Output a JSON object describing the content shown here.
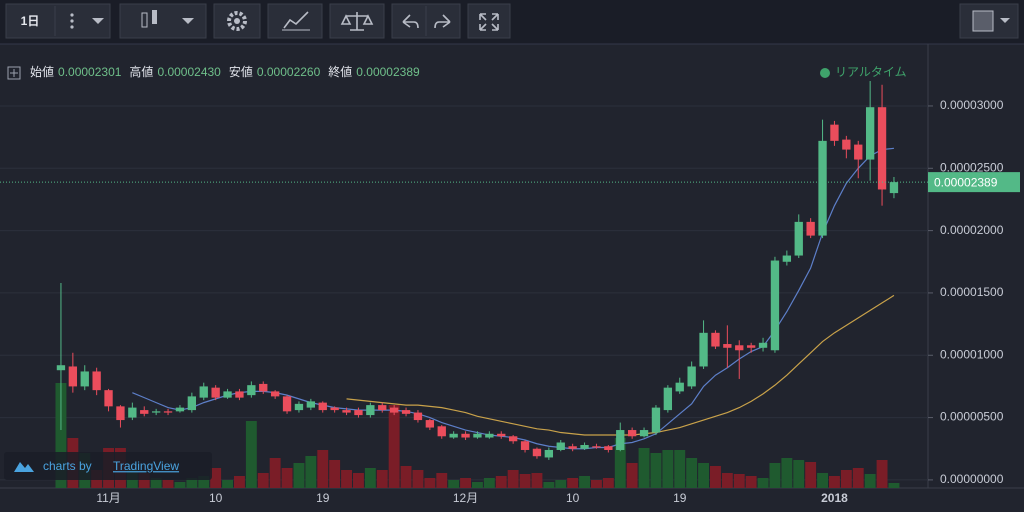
{
  "toolbar": {
    "interval": "1日"
  },
  "legend": {
    "items": [
      {
        "label": "始値",
        "value": "0.00002301"
      },
      {
        "label": "高値",
        "value": "0.00002430"
      },
      {
        "label": "安値",
        "value": "0.00002260"
      },
      {
        "label": "終値",
        "value": "0.00002389"
      }
    ]
  },
  "status": "リアルタイム",
  "branding": {
    "prefix": "charts by",
    "name": "TradingView"
  },
  "chart_data": {
    "type": "candlestick",
    "categories": [
      null,
      null,
      null,
      null,
      "11月",
      null,
      null,
      null,
      null,
      null,
      null,
      null,
      null,
      "10",
      null,
      null,
      null,
      null,
      null,
      null,
      null,
      null,
      "19",
      null,
      null,
      null,
      null,
      null,
      null,
      null,
      null,
      null,
      null,
      null,
      "12月",
      null,
      null,
      null,
      null,
      null,
      null,
      null,
      null,
      "10",
      null,
      null,
      null,
      null,
      null,
      null,
      null,
      null,
      "19",
      null,
      null,
      null,
      null,
      null,
      null,
      null,
      null,
      null,
      null,
      null,
      null,
      "2018",
      null,
      null,
      null,
      null,
      null
    ],
    "open": [
      8.8e-06,
      9.1e-06,
      7.5e-06,
      8.7e-06,
      7.2e-06,
      5.9e-06,
      5e-06,
      5.6e-06,
      5.4e-06,
      5.5e-06,
      5.5e-06,
      5.6e-06,
      6.6e-06,
      7.4e-06,
      6.6e-06,
      7.1e-06,
      6.8e-06,
      7.7e-06,
      7.1e-06,
      6.7e-06,
      5.6e-06,
      5.8e-06,
      6.2e-06,
      5.8e-06,
      5.6e-06,
      5.6e-06,
      5.2e-06,
      6e-06,
      5.8e-06,
      5.6e-06,
      5.4e-06,
      4.8e-06,
      4.3e-06,
      3.4e-06,
      3.7e-06,
      3.4e-06,
      3.4e-06,
      3.7e-06,
      3.5e-06,
      3.1e-06,
      2.5e-06,
      1.8e-06,
      2.4e-06,
      2.7e-06,
      2.5e-06,
      2.7e-06,
      2.7e-06,
      2.4e-06,
      4e-06,
      3.5e-06,
      3.8e-06,
      5.6e-06,
      7.1e-06,
      7.5e-06,
      9.1e-06,
      1.18e-05,
      1.09e-05,
      1.08e-05,
      1.08e-05,
      1.06e-05,
      1.04e-05,
      1.75e-05,
      1.8e-05,
      2.07e-05,
      1.96e-05,
      2.85e-05,
      2.73e-05,
      2.69e-05,
      2.57e-05,
      2.99e-05,
      2.301e-05
    ],
    "high": [
      1.58e-05,
      1.02e-05,
      9.2e-06,
      9e-06,
      7.3e-06,
      6e-06,
      6.2e-06,
      5.9e-06,
      5.7e-06,
      5.7e-06,
      6e-06,
      7e-06,
      7.8e-06,
      7.6e-06,
      7.3e-06,
      7.3e-06,
      7.9e-06,
      7.9e-06,
      7.2e-06,
      6.8e-06,
      6.3e-06,
      6.5e-06,
      6.3e-06,
      5.9e-06,
      5.8e-06,
      5.8e-06,
      6.2e-06,
      6.2e-06,
      6e-06,
      5.8e-06,
      5.6e-06,
      4.9e-06,
      4.4e-06,
      3.9e-06,
      3.9e-06,
      3.9e-06,
      3.9e-06,
      3.9e-06,
      3.6e-06,
      3.2e-06,
      2.6e-06,
      2.6e-06,
      3.2e-06,
      2.9e-06,
      3e-06,
      2.9e-06,
      2.8e-06,
      4.6e-06,
      4.2e-06,
      4.2e-06,
      6e-06,
      7.6e-06,
      8.2e-06,
      9.5e-06,
      1.28e-05,
      1.2e-05,
      1.24e-05,
      1.12e-05,
      1.1e-05,
      1.14e-05,
      1.79e-05,
      1.84e-05,
      2.13e-05,
      2.1e-05,
      2.89e-05,
      2.88e-05,
      2.76e-05,
      2.72e-05,
      3.2e-05,
      3.17e-05,
      2.43e-05
    ],
    "low": [
      4e-06,
      7e-06,
      7.2e-06,
      6.8e-06,
      5.5e-06,
      4.2e-06,
      4.8e-06,
      5.1e-06,
      5.2e-06,
      5.2e-06,
      5.4e-06,
      5.4e-06,
      6.4e-06,
      6.4e-06,
      6.5e-06,
      6.4e-06,
      6.6e-06,
      6.9e-06,
      6.5e-06,
      5.3e-06,
      5.4e-06,
      5.6e-06,
      5.4e-06,
      5.4e-06,
      5.2e-06,
      5e-06,
      5e-06,
      5.4e-06,
      5.2e-06,
      5.1e-06,
      4.6e-06,
      4e-06,
      3.3e-06,
      3.3e-06,
      3.2e-06,
      3.3e-06,
      3.3e-06,
      3.3e-06,
      2.9e-06,
      2.2e-06,
      1.7e-06,
      1.6e-06,
      2.3e-06,
      2.3e-06,
      2.4e-06,
      2.5e-06,
      2.2e-06,
      2.3e-06,
      3.3e-06,
      3.4e-06,
      3.6e-06,
      5.4e-06,
      6.9e-06,
      7.3e-06,
      8.9e-06,
      1.05e-05,
      9e-06,
      8.1e-06,
      1.02e-05,
      1.03e-05,
      1.02e-05,
      1.72e-05,
      1.78e-05,
      1.94e-05,
      1.94e-05,
      2.68e-05,
      2.58e-05,
      2.42e-05,
      2.4e-05,
      2.2e-05,
      2.26e-05
    ],
    "close": [
      9.2e-06,
      7.5e-06,
      8.7e-06,
      7.2e-06,
      5.9e-06,
      4.8e-06,
      5.8e-06,
      5.3e-06,
      5.5e-06,
      5.4e-06,
      5.8e-06,
      6.7e-06,
      7.5e-06,
      6.6e-06,
      7.1e-06,
      6.6e-06,
      7.6e-06,
      7.1e-06,
      6.7e-06,
      5.5e-06,
      6.1e-06,
      6.3e-06,
      5.6e-06,
      5.6e-06,
      5.4e-06,
      5.2e-06,
      6e-06,
      5.6e-06,
      5.4e-06,
      5.3e-06,
      4.8e-06,
      4.2e-06,
      3.5e-06,
      3.7e-06,
      3.4e-06,
      3.7e-06,
      3.7e-06,
      3.5e-06,
      3.1e-06,
      2.4e-06,
      1.9e-06,
      2.4e-06,
      3e-06,
      2.5e-06,
      2.8e-06,
      2.6e-06,
      2.4e-06,
      4e-06,
      3.5e-06,
      4e-06,
      5.8e-06,
      7.4e-06,
      7.8e-06,
      9.1e-06,
      1.18e-05,
      1.07e-05,
      1.06e-05,
      1.04e-05,
      1.06e-05,
      1.1e-05,
      1.76e-05,
      1.8e-05,
      2.07e-05,
      1.96e-05,
      2.72e-05,
      2.72e-05,
      2.65e-05,
      2.57e-05,
      2.99e-05,
      2.33e-05,
      2.389e-05
    ],
    "volume": [
      105,
      50,
      35,
      18,
      40,
      40,
      18,
      15,
      10,
      8,
      6,
      10,
      12,
      20,
      8,
      12,
      67,
      15,
      30,
      20,
      25,
      32,
      38,
      28,
      18,
      15,
      20,
      18,
      83,
      22,
      18,
      10,
      15,
      8,
      10,
      6,
      10,
      12,
      18,
      14,
      15,
      6,
      8,
      10,
      12,
      8,
      10,
      50,
      25,
      40,
      35,
      38,
      38,
      30,
      25,
      22,
      15,
      14,
      12,
      10,
      25,
      30,
      28,
      26,
      15,
      12,
      18,
      20,
      14,
      28,
      5
    ],
    "volume_lim": [
      0,
      120
    ],
    "lines": [
      {
        "color": "#5d7fc9",
        "values": [
          null,
          null,
          null,
          null,
          null,
          null,
          7e-06,
          6.6e-06,
          6.2e-06,
          5.8e-06,
          5.6e-06,
          5.8e-06,
          6.2e-06,
          6.5e-06,
          6.8e-06,
          7e-06,
          7.1e-06,
          7.1e-06,
          7e-06,
          6.8e-06,
          6.5e-06,
          6.2e-06,
          6e-06,
          5.8e-06,
          5.7e-06,
          5.6e-06,
          5.6e-06,
          5.6e-06,
          5.6e-06,
          5.5e-06,
          5.3e-06,
          5e-06,
          4.6e-06,
          4.3e-06,
          4e-06,
          3.8e-06,
          3.6e-06,
          3.5e-06,
          3.4e-06,
          3.2e-06,
          2.9e-06,
          2.7e-06,
          2.6e-06,
          2.5e-06,
          2.5e-06,
          2.6e-06,
          2.6e-06,
          2.9e-06,
          3e-06,
          3.3e-06,
          3.7e-06,
          4.5e-06,
          5.3e-06,
          6.1e-06,
          7.5e-06,
          8.4e-06,
          9e-06,
          9.7e-06,
          1.03e-05,
          1.07e-05,
          1.2e-05,
          1.35e-05,
          1.52e-05,
          1.7e-05,
          1.98e-05,
          2.2e-05,
          2.38e-05,
          2.5e-05,
          2.6e-05,
          2.65e-05,
          2.66e-05
        ]
      },
      {
        "color": "#c9a24a",
        "values": [
          null,
          null,
          null,
          null,
          null,
          null,
          null,
          null,
          null,
          null,
          null,
          null,
          null,
          null,
          null,
          null,
          null,
          null,
          null,
          null,
          null,
          null,
          null,
          null,
          6.5e-06,
          6.4e-06,
          6.3e-06,
          6.2e-06,
          6.1e-06,
          6e-06,
          6e-06,
          5.9e-06,
          5.8e-06,
          5.6e-06,
          5.4e-06,
          5.1e-06,
          4.9e-06,
          4.7e-06,
          4.5e-06,
          4.3e-06,
          4.1e-06,
          4e-06,
          3.8e-06,
          3.7e-06,
          3.6e-06,
          3.6e-06,
          3.6e-06,
          3.6e-06,
          3.6e-06,
          3.7e-06,
          3.8e-06,
          4e-06,
          4.2e-06,
          4.5e-06,
          4.8e-06,
          5.1e-06,
          5.4e-06,
          5.8e-06,
          6.3e-06,
          6.9e-06,
          7.6e-06,
          8.4e-06,
          9.3e-06,
          1.02e-05,
          1.11e-05,
          1.18e-05,
          1.24e-05,
          1.3e-05,
          1.36e-05,
          1.42e-05,
          1.48e-05
        ]
      }
    ],
    "up_color": "#53b987",
    "down_color": "#eb4d5c",
    "volume_up_color": "#1f5a2f",
    "volume_down_color": "#7a1d27",
    "ylim": [
      -6.5e-07,
      3.465e-05
    ],
    "yticks": [
      {
        "value": 0,
        "label": "0.00000000"
      },
      {
        "value": 5e-06,
        "label": "0.00000500"
      },
      {
        "value": 1e-05,
        "label": "0.00001000"
      },
      {
        "value": 1.5e-05,
        "label": "0.00001500"
      },
      {
        "value": 2e-05,
        "label": "0.00002000"
      },
      {
        "value": 2.5e-05,
        "label": "0.00002500"
      },
      {
        "value": 3e-05,
        "label": "0.00003000"
      }
    ],
    "last_price": {
      "value": 2.389e-05,
      "label": "0.00002389"
    },
    "grid": true
  }
}
